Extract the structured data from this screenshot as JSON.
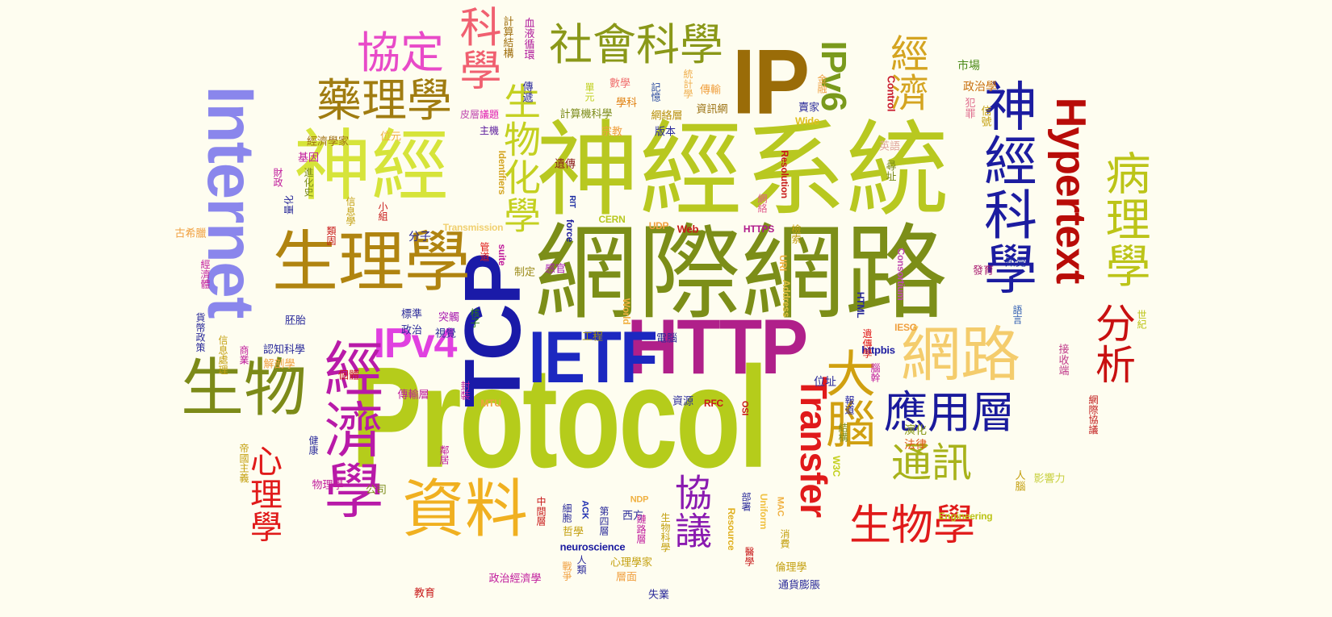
{
  "words": [
    {
      "text": "Protocol",
      "color": "#b5cc1b"
    },
    {
      "text": "神經系統",
      "color": "#b8c820"
    },
    {
      "text": "網際網路",
      "color": "#7c8e18"
    },
    {
      "text": "TCP",
      "color": "#1a1aa8"
    },
    {
      "text": "HTTP",
      "color": "#b0208a"
    },
    {
      "text": "IETF",
      "color": "#1c28c0"
    },
    {
      "text": "Internet",
      "color": "#8a86ec"
    },
    {
      "text": "IP",
      "color": "#9a6c08"
    },
    {
      "text": "IPv4",
      "color": "#e040e0"
    },
    {
      "text": "IPv6",
      "color": "#7a9a1c"
    },
    {
      "text": "Hypertext",
      "color": "#b80c08"
    },
    {
      "text": "Transfer",
      "color": "#e01a1a"
    },
    {
      "text": "神經",
      "color": "#d6e43a"
    },
    {
      "text": "生理學",
      "color": "#b08410"
    },
    {
      "text": "生物",
      "color": "#7c8a18"
    },
    {
      "text": "資料",
      "color": "#f0b020"
    },
    {
      "text": "經濟學",
      "color": "#b81aa8"
    },
    {
      "text": "網路",
      "color": "#f4cc6c"
    },
    {
      "text": "神經科學",
      "color": "#1c1ca0"
    },
    {
      "text": "病理學",
      "color": "#bcc418"
    },
    {
      "text": "藥理學",
      "color": "#a07c10"
    },
    {
      "text": "協定",
      "color": "#e84ac8"
    },
    {
      "text": "社會科學",
      "color": "#8a9818"
    },
    {
      "text": "科學",
      "color": "#f06070"
    },
    {
      "text": "經濟",
      "color": "#d4a420"
    },
    {
      "text": "大腦",
      "color": "#d0a010"
    },
    {
      "text": "應用層",
      "color": "#1a1a9c"
    },
    {
      "text": "通訊",
      "color": "#a8b21a"
    },
    {
      "text": "生物學",
      "color": "#e01a1a"
    },
    {
      "text": "協議",
      "color": "#8a1ab0"
    },
    {
      "text": "分析",
      "color": "#c81010"
    },
    {
      "text": "生物化學",
      "color": "#c4d020"
    },
    {
      "text": "心理學",
      "color": "#e01a1a"
    },
    {
      "text": "市場",
      "color": "#4a8a18"
    },
    {
      "text": "政治學",
      "color": "#c87010"
    },
    {
      "text": "信號",
      "color": "#c4a010"
    },
    {
      "text": "犯罪",
      "color": "#e07090"
    },
    {
      "text": "英語",
      "color": "#e0a8a0"
    },
    {
      "text": "尋址",
      "color": "#7a8a18"
    },
    {
      "text": "知覺",
      "color": "#1c2ca0"
    },
    {
      "text": "發育",
      "color": "#a81a70"
    },
    {
      "text": "語言",
      "color": "#2c5ab0"
    },
    {
      "text": "世紀",
      "color": "#bcc418"
    },
    {
      "text": "接收端",
      "color": "#c03a8a"
    },
    {
      "text": "網際協議",
      "color": "#c01818"
    },
    {
      "text": "影響力",
      "color": "#c8d040"
    },
    {
      "text": "人腦",
      "color": "#c4a010"
    },
    {
      "text": "演化",
      "color": "#8a9a18"
    },
    {
      "text": "法律",
      "color": "#e05a1a"
    },
    {
      "text": "Control",
      "color": "#c81a2c"
    },
    {
      "text": "Wide",
      "color": "#e0c020"
    },
    {
      "text": "賣家",
      "color": "#2a2a9a"
    },
    {
      "text": "金融",
      "color": "#f0a040"
    },
    {
      "text": "資訊網",
      "color": "#9a7010"
    },
    {
      "text": "傳輸",
      "color": "#f0a040"
    },
    {
      "text": "網絡層",
      "color": "#b89010"
    },
    {
      "text": "統計學",
      "color": "#f0b050"
    },
    {
      "text": "學科",
      "color": "#e08010"
    },
    {
      "text": "數學",
      "color": "#f07070"
    },
    {
      "text": "記憶",
      "color": "#2a4aa0"
    },
    {
      "text": "單元",
      "color": "#c0d020"
    },
    {
      "text": "傳遞",
      "color": "#2a2a9a"
    },
    {
      "text": "計算結構",
      "color": "#a07010"
    },
    {
      "text": "血液循環",
      "color": "#b01a9c"
    },
    {
      "text": "計算機科學",
      "color": "#7a8a18"
    },
    {
      "text": "皮層",
      "color": "#c04ab0"
    },
    {
      "text": "議題",
      "color": "#e01ab0"
    },
    {
      "text": "主機",
      "color": "#5a1a9c"
    },
    {
      "text": "宗教",
      "color": "#f0a040"
    },
    {
      "text": "版本",
      "color": "#2a2a9a"
    },
    {
      "text": "Resolution",
      "color": "#c81a1a"
    },
    {
      "text": "網絡",
      "color": "#e05a8a"
    },
    {
      "text": "Identifiers",
      "color": "#d4a420"
    },
    {
      "text": "遺傳",
      "color": "#8a1a1a"
    },
    {
      "text": "RIT",
      "color": "#1c2ca0"
    },
    {
      "text": "force",
      "color": "#1c1ca0"
    },
    {
      "text": "CERN",
      "color": "#b8c820"
    },
    {
      "text": "UDP",
      "color": "#f0a040"
    },
    {
      "text": "Web",
      "color": "#c81a1a"
    },
    {
      "text": "HTTPS",
      "color": "#b01a8a"
    },
    {
      "text": "檢索",
      "color": "#c4a010"
    },
    {
      "text": "Transmission",
      "color": "#f0d070"
    },
    {
      "text": "suite",
      "color": "#c01a9c"
    },
    {
      "text": "分子",
      "color": "#2a2a9a"
    },
    {
      "text": "管道",
      "color": "#e01a1a"
    },
    {
      "text": "制定",
      "color": "#9a8a18"
    },
    {
      "text": "感官",
      "color": "#a81ab0"
    },
    {
      "text": "核子",
      "color": "#2a7a1a"
    },
    {
      "text": "URI",
      "color": "#f0b040"
    },
    {
      "text": "Address",
      "color": "#e0c040"
    },
    {
      "text": "World",
      "color": "#f0b040"
    },
    {
      "text": "Consortium",
      "color": "#c04ab0"
    },
    {
      "text": "HTML",
      "color": "#2a2a9a"
    },
    {
      "text": "IESG",
      "color": "#f0a040"
    },
    {
      "text": "httpbis",
      "color": "#1c1ca0"
    },
    {
      "text": "遺傳學",
      "color": "#e01a1a"
    },
    {
      "text": "腦幹",
      "color": "#c01a9c"
    },
    {
      "text": "結構",
      "color": "#7a8a18"
    },
    {
      "text": "W3C",
      "color": "#c4d020"
    },
    {
      "text": "報道",
      "color": "#1c1ca0"
    },
    {
      "text": "位址",
      "color": "#2a2a9a"
    },
    {
      "text": "標準",
      "color": "#2a2a9a"
    },
    {
      "text": "政治",
      "color": "#2a2a9a"
    },
    {
      "text": "突觸",
      "color": "#a81ab0"
    },
    {
      "text": "視覺",
      "color": "#2a2a9a"
    },
    {
      "text": "工程",
      "color": "#9a8a18"
    },
    {
      "text": "電腦",
      "color": "#2a2a9a"
    },
    {
      "text": "封裝",
      "color": "#c01a9c"
    },
    {
      "text": "傳輸層",
      "color": "#c01a9c"
    },
    {
      "text": "MTU",
      "color": "#f0a040"
    },
    {
      "text": "資源",
      "color": "#2a2a9a"
    },
    {
      "text": "RFC",
      "color": "#c81a1a"
    },
    {
      "text": "OSI",
      "color": "#c81a1a"
    },
    {
      "text": "部署",
      "color": "#2a2a9a"
    },
    {
      "text": "Uniform",
      "color": "#f0c040"
    },
    {
      "text": "MAC",
      "color": "#f0b040"
    },
    {
      "text": "消費",
      "color": "#c4a010"
    },
    {
      "text": "醫學",
      "color": "#c81a1a"
    },
    {
      "text": "倫理學",
      "color": "#c4a010"
    },
    {
      "text": "通貨膨脹",
      "color": "#2a2a9a"
    },
    {
      "text": "Engineering",
      "color": "#bcc418"
    },
    {
      "text": "中間層",
      "color": "#c81a1a"
    },
    {
      "text": "NDP",
      "color": "#f0b040"
    },
    {
      "text": "細胞",
      "color": "#2a2a9a"
    },
    {
      "text": "ACK",
      "color": "#1c2cb0"
    },
    {
      "text": "哲學",
      "color": "#c4a010"
    },
    {
      "text": "第四層",
      "color": "#2a2a9a"
    },
    {
      "text": "西方",
      "color": "#2a2a9a"
    },
    {
      "text": "鏈路層",
      "color": "#c01a9c"
    },
    {
      "text": "生物科學",
      "color": "#c4a010"
    },
    {
      "text": "Resource",
      "color": "#e0b020"
    },
    {
      "text": "neuroscience",
      "color": "#1c1ca0"
    },
    {
      "text": "心理學家",
      "color": "#c4a010"
    },
    {
      "text": "人類",
      "color": "#2a2a9a"
    },
    {
      "text": "戰爭",
      "color": "#f0a040"
    },
    {
      "text": "層面",
      "color": "#f0a040"
    },
    {
      "text": "失業",
      "color": "#2a2a9a"
    },
    {
      "text": "政治經濟學",
      "color": "#c01a9c"
    },
    {
      "text": "教育",
      "color": "#c81a1a"
    },
    {
      "text": "位元",
      "color": "#f0b040"
    },
    {
      "text": "經濟學家",
      "color": "#a07010"
    },
    {
      "text": "基因",
      "color": "#c01a9c"
    },
    {
      "text": "財政",
      "color": "#c01a9c"
    },
    {
      "text": "進化史",
      "color": "#7a8a18"
    },
    {
      "text": "量化",
      "color": "#2a2a9a"
    },
    {
      "text": "小組",
      "color": "#c81a1a"
    },
    {
      "text": "信息學",
      "color": "#c4a010"
    },
    {
      "text": "類固",
      "color": "#c81a1a"
    },
    {
      "text": "古希臘",
      "color": "#f0a040"
    },
    {
      "text": "經濟體",
      "color": "#c01a9c"
    },
    {
      "text": "貨幣政策",
      "color": "#2a2a9a"
    },
    {
      "text": "信息處理",
      "color": "#c4a010"
    },
    {
      "text": "胚胎",
      "color": "#2a2a9a"
    },
    {
      "text": "商業",
      "color": "#c01a9c"
    },
    {
      "text": "認知科學",
      "color": "#2a2a9a"
    },
    {
      "text": "解剖學",
      "color": "#f0a040"
    },
    {
      "text": "個體",
      "color": "#c81a1a"
    },
    {
      "text": "帝國主義",
      "color": "#c4a010"
    },
    {
      "text": "健康",
      "color": "#2a2a9a"
    },
    {
      "text": "物理學",
      "color": "#c01a9c"
    },
    {
      "text": "公司",
      "color": "#7a8a18"
    },
    {
      "text": "鄰居",
      "color": "#c01a9c"
    }
  ]
}
